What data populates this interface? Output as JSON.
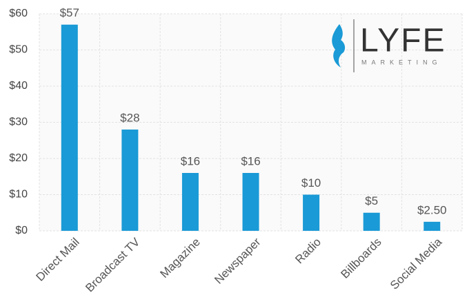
{
  "chart_data": {
    "type": "bar",
    "categories": [
      "Direct Mail",
      "Broadcast TV",
      "Magazine",
      "Newspaper",
      "Radio",
      "Billboards",
      "Social Media"
    ],
    "values": [
      57,
      28,
      16,
      16,
      10,
      5,
      2.5
    ],
    "value_labels": [
      "$57",
      "$28",
      "$16",
      "$16",
      "$10",
      "$5",
      "$2.50"
    ],
    "color": "#1a9ad6",
    "ylim": [
      0,
      60
    ],
    "yticks": [
      {
        "value": 0,
        "label": "$0"
      },
      {
        "value": 10,
        "label": "$10"
      },
      {
        "value": 20,
        "label": "$20"
      },
      {
        "value": 30,
        "label": "$30"
      },
      {
        "value": 40,
        "label": "$40"
      },
      {
        "value": 50,
        "label": "$50"
      },
      {
        "value": 60,
        "label": "$60"
      }
    ],
    "grid": true
  },
  "logo": {
    "name": "LYFE",
    "tagline": "MARKETING"
  }
}
